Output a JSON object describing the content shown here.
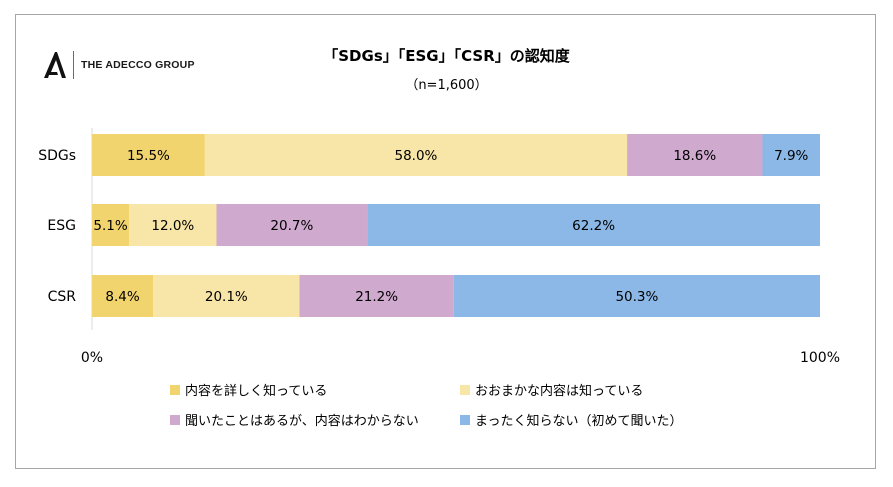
{
  "logo": {
    "mark": "A",
    "text": "THE ADECCO GROUP"
  },
  "chart_data": {
    "type": "bar",
    "orientation": "horizontal",
    "stacked": true,
    "title": "「SDGs」「ESG」「CSR」の認知度",
    "subtitle": "（n=1,600）",
    "categories": [
      "SDGs",
      "ESG",
      "CSR"
    ],
    "series": [
      {
        "name": "内容を詳しく知っている",
        "color": "#f2d46f",
        "values": [
          15.5,
          5.1,
          8.4
        ]
      },
      {
        "name": "おおまかな内容は知っている",
        "color": "#f8e6a8",
        "values": [
          58.0,
          12.0,
          20.1
        ]
      },
      {
        "name": "聞いたことはあるが、内容はわからない",
        "color": "#d0a9cf",
        "values": [
          18.6,
          20.7,
          21.2
        ]
      },
      {
        "name": "まったく知らない（初めて聞いた）",
        "color": "#8bb8e6",
        "values": [
          7.9,
          62.2,
          50.3
        ]
      }
    ],
    "xlim": [
      0,
      100
    ],
    "x_ticks": [
      "0%",
      "100%"
    ],
    "value_suffix": "%",
    "grid": false,
    "legend_position": "bottom"
  }
}
